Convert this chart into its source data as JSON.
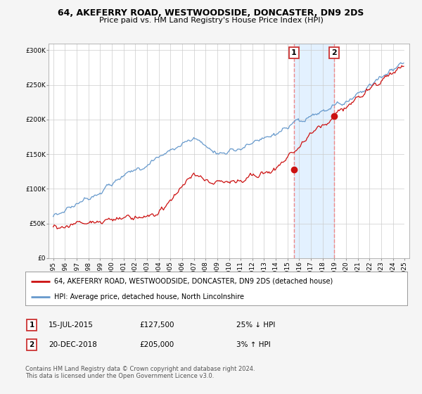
{
  "title1": "64, AKEFERRY ROAD, WESTWOODSIDE, DONCASTER, DN9 2DS",
  "title2": "Price paid vs. HM Land Registry's House Price Index (HPI)",
  "bg_color": "#f2f2f2",
  "plot_bg": "#ffffff",
  "shaded_region": [
    2015.54,
    2018.97
  ],
  "marker1": {
    "year": 2015.54,
    "value": 127500,
    "label": "1"
  },
  "marker2": {
    "year": 2018.97,
    "value": 205000,
    "label": "2"
  },
  "legend_line1": "64, AKEFERRY ROAD, WESTWOODSIDE, DONCASTER, DN9 2DS (detached house)",
  "legend_line2": "HPI: Average price, detached house, North Lincolnshire",
  "ann1_date": "15-JUL-2015",
  "ann1_price": "£127,500",
  "ann1_hpi": "25% ↓ HPI",
  "ann2_date": "20-DEC-2018",
  "ann2_price": "£205,000",
  "ann2_hpi": "3% ↑ HPI",
  "footer": "Contains HM Land Registry data © Crown copyright and database right 2024.\nThis data is licensed under the Open Government Licence v3.0.",
  "ylim": [
    0,
    310000
  ],
  "yticks": [
    0,
    50000,
    100000,
    150000,
    200000,
    250000,
    300000
  ],
  "red_color": "#cc1111",
  "blue_color": "#6699cc",
  "dashed_color": "#ee8888",
  "shade_color": "#ddeeff"
}
